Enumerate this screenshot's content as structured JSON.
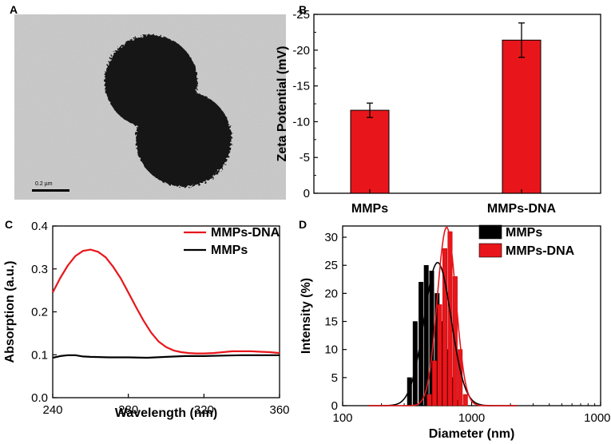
{
  "panels": {
    "a": {
      "letter": "A",
      "scale_bar_label": "0.2 µm"
    },
    "b": {
      "letter": "B"
    },
    "c": {
      "letter": "C"
    },
    "d": {
      "letter": "D"
    }
  },
  "colors": {
    "red": "#e8161b",
    "black": "#000000"
  },
  "chart_data": [
    {
      "panel": "B",
      "type": "bar",
      "categories": [
        "MMPs",
        "MMPs-DNA"
      ],
      "values": [
        -11.6,
        -21.4
      ],
      "errors": [
        1.0,
        2.4
      ],
      "ylabel": "Zeta Potential (mV)",
      "xlabel": "",
      "ylim": [
        0,
        -25
      ],
      "yticks": [
        0,
        -5,
        -10,
        -15,
        -20,
        -25
      ],
      "ytick_labels": [
        "0",
        "-5",
        "-10",
        "-15",
        "-20",
        "-25"
      ],
      "bar_color": "#e8161b"
    },
    {
      "panel": "C",
      "type": "line",
      "xlabel": "Wavelength (nm)",
      "ylabel": "Absorption (a.u.)",
      "xlim": [
        240,
        360
      ],
      "ylim": [
        0.0,
        0.4
      ],
      "xticks": [
        240,
        280,
        320,
        360
      ],
      "xtick_labels": [
        "240",
        "280",
        "320",
        "360"
      ],
      "yticks": [
        0.0,
        0.1,
        0.2,
        0.3,
        0.4
      ],
      "ytick_labels": [
        "0.0",
        "0.1",
        "0.2",
        "0.3",
        "0.4"
      ],
      "legend_position": "top-right",
      "series": [
        {
          "name": "MMPs-DNA",
          "color": "#e8161b",
          "x": [
            240,
            244,
            248,
            252,
            256,
            260,
            264,
            268,
            272,
            276,
            280,
            284,
            288,
            292,
            296,
            300,
            304,
            308,
            312,
            316,
            320,
            325,
            330,
            335,
            340,
            345,
            350,
            355,
            360
          ],
          "y": [
            0.245,
            0.279,
            0.308,
            0.33,
            0.342,
            0.345,
            0.34,
            0.327,
            0.305,
            0.278,
            0.245,
            0.212,
            0.18,
            0.152,
            0.131,
            0.118,
            0.11,
            0.106,
            0.104,
            0.103,
            0.103,
            0.104,
            0.106,
            0.108,
            0.108,
            0.108,
            0.107,
            0.106,
            0.104
          ]
        },
        {
          "name": "MMPs",
          "color": "#000000",
          "x": [
            240,
            244,
            248,
            252,
            256,
            260,
            270,
            280,
            290,
            300,
            310,
            320,
            330,
            340,
            350,
            360
          ],
          "y": [
            0.093,
            0.097,
            0.099,
            0.099,
            0.096,
            0.095,
            0.094,
            0.094,
            0.093,
            0.095,
            0.097,
            0.097,
            0.098,
            0.099,
            0.099,
            0.099
          ]
        }
      ]
    },
    {
      "panel": "D",
      "type": "bar",
      "xscale": "log",
      "xlabel": "Diameter (nm)",
      "ylabel": "Intensity (%)",
      "xlim": [
        100,
        10000
      ],
      "ylim": [
        0,
        32
      ],
      "xticks": [
        100,
        1000,
        10000
      ],
      "xtick_labels": [
        "100",
        "1000",
        "10000"
      ],
      "yticks": [
        0,
        5,
        10,
        15,
        20,
        25,
        30
      ],
      "ytick_labels": [
        "0",
        "5",
        "10",
        "15",
        "20",
        "25",
        "30"
      ],
      "legend_position": "top-right",
      "series": [
        {
          "name": "MMPs",
          "color": "#000000",
          "x": [
            330,
            365,
            405,
            445,
            490,
            540,
            595,
            655,
            720,
            790
          ],
          "values": [
            5,
            15,
            22,
            25,
            24,
            20,
            15,
            10,
            5,
            1
          ],
          "fit_peak_x": 545,
          "fit_peak_y": 25.5
        },
        {
          "name": "MMPs-DNA",
          "color": "#e8161b",
          "x": [
            470,
            515,
            565,
            620,
            680,
            745,
            815,
            895
          ],
          "values": [
            2,
            8,
            18,
            28,
            31,
            23,
            10,
            2
          ],
          "fit_peak_x": 640,
          "fit_peak_y": 31.8
        }
      ]
    }
  ]
}
